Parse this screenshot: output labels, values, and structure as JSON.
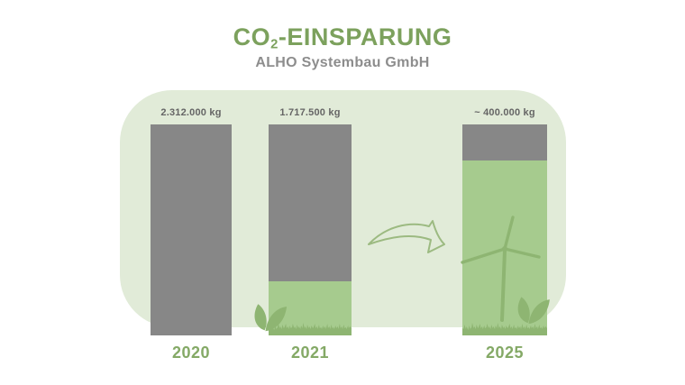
{
  "colors": {
    "title_green": "#7ca15d",
    "year_green": "#84a966",
    "subtitle_gray": "#8d8d8d",
    "value_gray": "#656565",
    "panel_green": "#e1ebd8",
    "bar_gray": "#878787",
    "bar_green": "#a6cb8e",
    "dark_green": "#8eb572",
    "arrow_green": "#9cba81",
    "bg": "#ffffff"
  },
  "header": {
    "title_prefix": "CO",
    "title_sub": "2",
    "title_suffix": "-EINSPARUNG",
    "subtitle": "ALHO Systembau GmbH"
  },
  "icons": {
    "arrow": "curved-swoosh-arrow-right",
    "turbine": "wind-turbine",
    "grass": "grass-silhouette",
    "sprout": "leaf-sprout"
  },
  "chart_data": {
    "type": "bar",
    "title": "CO2-EINSPARUNG",
    "subtitle": "ALHO Systembau GmbH",
    "unit": "kg",
    "max_value": 2312000,
    "categories": [
      "2020",
      "2021",
      "2025"
    ],
    "bars": [
      {
        "year": "2020",
        "value": 2312000,
        "value_label": "2.312.000 kg",
        "approx": false
      },
      {
        "year": "2021",
        "value": 1717500,
        "value_label": "1.717.500 kg",
        "approx": false
      },
      {
        "year": "2025",
        "value": 400000,
        "value_label": "~ 400.000 kg",
        "approx": true
      }
    ]
  }
}
